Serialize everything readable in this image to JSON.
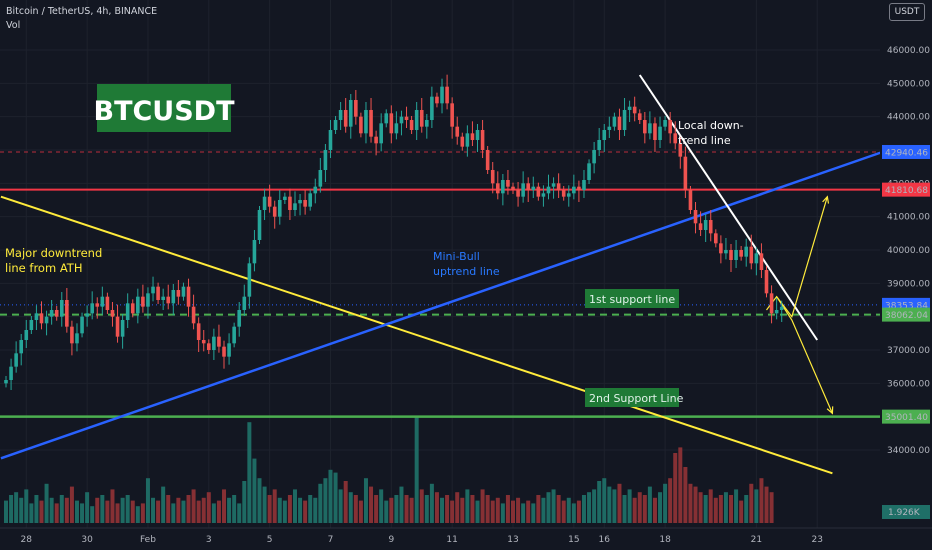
{
  "header": {
    "symbol_line": "Bitcoin / TetherUS, 4h, BINANCE",
    "volume_label": "Vol",
    "unit_badge": "USDT"
  },
  "colors": {
    "background": "#131722",
    "up_candle": "#26a69a",
    "down_candle": "#ef5350",
    "blue_trend": "#2962ff",
    "yellow_trend": "#ffeb3b",
    "support_green": "#4caf50",
    "resistance_red": "#f23645"
  },
  "chart_data": {
    "type": "candlestick",
    "title": "Bitcoin / TetherUS, 4h, BINANCE",
    "ylim": [
      33700,
      47400
    ],
    "y_ticks": [
      34000,
      35000,
      36000,
      37000,
      38000,
      39000,
      40000,
      41000,
      42000,
      43000,
      44000,
      45000,
      46000
    ],
    "y_tick_labels": [
      "34000.00",
      "35000.00",
      "36000.00",
      "37000.00",
      "38000.00",
      "39000.00",
      "40000.00",
      "41000.00",
      "42000.00",
      "43000.00",
      "44000.00",
      "45000.00",
      "46000.00"
    ],
    "x_ticks": [
      {
        "label": "28",
        "t": 4
      },
      {
        "label": "30",
        "t": 16
      },
      {
        "label": "Feb",
        "t": 28
      },
      {
        "label": "3",
        "t": 40
      },
      {
        "label": "5",
        "t": 52
      },
      {
        "label": "7",
        "t": 64
      },
      {
        "label": "9",
        "t": 76
      },
      {
        "label": "11",
        "t": 88
      },
      {
        "label": "13",
        "t": 100
      },
      {
        "label": "15",
        "t": 112
      },
      {
        "label": "16",
        "t": 118
      },
      {
        "label": "18",
        "t": 130
      },
      {
        "label": "21",
        "t": 148
      },
      {
        "label": "23",
        "t": 160
      }
    ],
    "candle_close": [
      36100,
      36500,
      36900,
      37300,
      37600,
      37900,
      38100,
      37800,
      38000,
      38200,
      38000,
      38500,
      37700,
      37200,
      37500,
      38000,
      38100,
      38400,
      38300,
      38600,
      38200,
      38000,
      37400,
      37900,
      38400,
      38100,
      38600,
      38300,
      38700,
      38900,
      38500,
      38600,
      38400,
      38800,
      38600,
      38900,
      38300,
      37800,
      37300,
      37200,
      37000,
      37400,
      37100,
      36800,
      37200,
      37700,
      38200,
      38600,
      39600,
      40300,
      41200,
      41600,
      41300,
      41000,
      41500,
      41600,
      41200,
      41400,
      41500,
      41300,
      41700,
      41900,
      42400,
      43000,
      43600,
      43900,
      44200,
      43700,
      44500,
      44000,
      43500,
      44200,
      43400,
      43200,
      43800,
      44100,
      43500,
      43800,
      44000,
      43900,
      43600,
      44200,
      43700,
      43900,
      44600,
      44400,
      44900,
      44400,
      43700,
      43400,
      43100,
      43500,
      43300,
      43600,
      43000,
      42400,
      42000,
      41700,
      42100,
      41900,
      41800,
      41600,
      42000,
      41800,
      41900,
      41600,
      41700,
      41900,
      42000,
      41800,
      41600,
      41700,
      41900,
      41800,
      42100,
      42600,
      43000,
      43300,
      43600,
      43700,
      44000,
      43600,
      44200,
      44300,
      44100,
      43900,
      43500,
      43800,
      43300,
      43700,
      43900,
      43500,
      43200,
      42800,
      41800,
      41200,
      40800,
      40600,
      40900,
      40500,
      40200,
      39900,
      40000,
      39700,
      40000,
      39800,
      40100,
      39600,
      39900,
      39400,
      38700,
      38100,
      38200,
      38300
    ],
    "volume": [
      0.8,
      1.0,
      1.1,
      0.9,
      1.2,
      0.7,
      1.0,
      0.8,
      1.4,
      0.9,
      0.7,
      1.0,
      0.9,
      1.3,
      0.8,
      0.7,
      1.1,
      0.6,
      0.9,
      1.0,
      0.8,
      1.2,
      0.7,
      0.9,
      1.0,
      0.8,
      0.6,
      0.7,
      1.6,
      0.9,
      0.8,
      1.3,
      1.0,
      0.7,
      0.9,
      0.8,
      1.0,
      1.2,
      0.8,
      0.9,
      1.1,
      0.7,
      0.8,
      1.2,
      0.9,
      1.0,
      0.7,
      1.5,
      3.6,
      2.3,
      1.6,
      1.3,
      1.0,
      1.2,
      0.9,
      0.8,
      1.0,
      1.2,
      0.9,
      0.8,
      1.0,
      0.9,
      1.4,
      1.6,
      1.9,
      1.8,
      1.2,
      1.5,
      1.1,
      1.0,
      0.8,
      1.6,
      1.3,
      1.0,
      1.2,
      0.8,
      0.9,
      1.0,
      1.3,
      1.0,
      0.9,
      3.8,
      1.2,
      1.0,
      1.4,
      1.1,
      0.9,
      1.0,
      0.8,
      1.1,
      0.9,
      1.2,
      1.0,
      0.8,
      1.2,
      1.0,
      0.8,
      0.9,
      0.7,
      1.0,
      0.8,
      0.9,
      0.7,
      0.8,
      0.7,
      1.0,
      0.9,
      1.1,
      1.2,
      1.0,
      0.8,
      0.9,
      0.7,
      0.8,
      1.0,
      1.1,
      1.2,
      1.5,
      1.6,
      1.3,
      1.2,
      1.4,
      1.0,
      1.2,
      0.9,
      1.1,
      1.0,
      1.3,
      0.9,
      1.1,
      1.4,
      1.6,
      2.5,
      2.7,
      2.0,
      1.4,
      1.3,
      1.1,
      1.0,
      1.2,
      0.9,
      1.0,
      1.1,
      1.0,
      1.2,
      0.8,
      1.0,
      1.4,
      1.2,
      1.6,
      1.3,
      1.1
    ],
    "annotations": {
      "boxed_title": "BTCUSDT",
      "major_downtrend": [
        "Major downtrend",
        "line from ATH"
      ],
      "mini_bull": [
        "Mini-Bull",
        "uptrend line"
      ],
      "local_downtrend": [
        "Local down-",
        "trend line"
      ],
      "support_1": "1st support line",
      "support_2": "2nd Support Line"
    },
    "price_tags": {
      "upper_dashed": "42940.46",
      "resistance": "41810.68",
      "current_price": "38353.84",
      "support_1": "38062.04",
      "support_2": "35001.40",
      "volume_value": "1.926K"
    },
    "levels": {
      "upper_dashed": 42940.46,
      "resistance": 41810.68,
      "current_price": 38353.84,
      "support_1": 38062.04,
      "support_2": 35001.4
    },
    "trendlines": {
      "yellow": {
        "from": {
          "t": -1,
          "price": 41600
        },
        "to": {
          "t": 163,
          "price": 33300
        }
      },
      "blue": {
        "from": {
          "t": -1,
          "price": 33750
        },
        "to": {
          "t": 174,
          "price": 43000
        }
      },
      "white": {
        "from": {
          "t": 125,
          "price": 45250
        },
        "to": {
          "t": 160,
          "price": 37300
        }
      }
    },
    "projection_arrows": [
      [
        {
          "t": 150,
          "price": 38200
        },
        {
          "t": 152,
          "price": 38600
        },
        {
          "t": 155,
          "price": 38000
        },
        {
          "t": 162,
          "price": 41600
        }
      ],
      [
        {
          "t": 152,
          "price": 38600
        },
        {
          "t": 155,
          "price": 37900
        },
        {
          "t": 163,
          "price": 35100
        }
      ]
    ]
  }
}
